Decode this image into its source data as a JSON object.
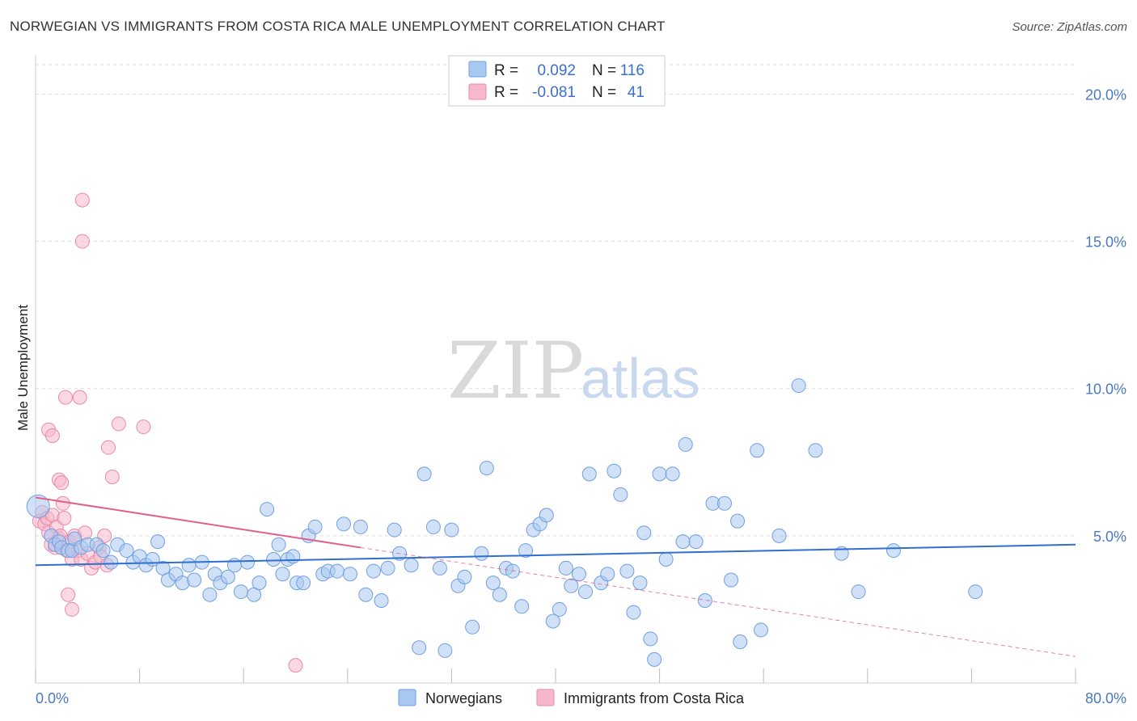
{
  "title": "NORWEGIAN VS IMMIGRANTS FROM COSTA RICA MALE UNEMPLOYMENT CORRELATION CHART",
  "source": "Source: ZipAtlas.com",
  "watermark": {
    "zip": "ZIP",
    "atlas": "atlas"
  },
  "colors": {
    "blue_fill": "#a9c8f0",
    "blue_stroke": "#6f9fe0",
    "blue_line": "#2f6fd0",
    "pink_fill": "#f7b8cb",
    "pink_stroke": "#e88aa8",
    "pink_line": "#e0608a",
    "grid": "#dddddd",
    "axis_text": "#4a78c2"
  },
  "legend": {
    "rows": [
      {
        "r_label": "R =",
        "r_value": "0.092",
        "n_label": "N =",
        "n_value": "116"
      },
      {
        "r_label": "R =",
        "r_value": "-0.081",
        "n_label": "N =",
        "n_value": "41"
      }
    ]
  },
  "chart_data": {
    "type": "scatter",
    "title": "NORWEGIAN VS IMMIGRANTS FROM COSTA RICA MALE UNEMPLOYMENT CORRELATION CHART",
    "xlabel": "",
    "ylabel": "Male Unemployment",
    "xlim": [
      0,
      80
    ],
    "ylim": [
      0,
      21
    ],
    "x_tick_labels": [
      "0.0%",
      "80.0%"
    ],
    "y_ticks": [
      5,
      10,
      15,
      20
    ],
    "y_tick_labels": [
      "5.0%",
      "10.0%",
      "15.0%",
      "20.0%"
    ],
    "grid": true,
    "legend_position": "top-center",
    "series": [
      {
        "name": "Norwegians",
        "color": "#a9c8f0",
        "trend": {
          "x": [
            0,
            80
          ],
          "y": [
            4.0,
            4.7
          ],
          "style": "solid"
        },
        "points": [
          [
            0.2,
            6.0
          ],
          [
            1.2,
            5.0
          ],
          [
            1.5,
            4.7
          ],
          [
            1.8,
            4.8
          ],
          [
            2.0,
            4.6
          ],
          [
            2.5,
            4.5
          ],
          [
            2.8,
            4.5
          ],
          [
            3.0,
            4.9
          ],
          [
            3.5,
            4.6
          ],
          [
            4.0,
            4.7
          ],
          [
            4.7,
            4.7
          ],
          [
            5.2,
            4.5
          ],
          [
            5.8,
            4.1
          ],
          [
            6.3,
            4.7
          ],
          [
            7.0,
            4.5
          ],
          [
            7.5,
            4.1
          ],
          [
            8.0,
            4.3
          ],
          [
            8.5,
            4.0
          ],
          [
            9.0,
            4.2
          ],
          [
            9.4,
            4.8
          ],
          [
            9.8,
            3.9
          ],
          [
            10.2,
            3.5
          ],
          [
            10.8,
            3.7
          ],
          [
            11.3,
            3.4
          ],
          [
            11.8,
            4.0
          ],
          [
            12.2,
            3.5
          ],
          [
            12.8,
            4.1
          ],
          [
            13.4,
            3.0
          ],
          [
            13.8,
            3.7
          ],
          [
            14.2,
            3.4
          ],
          [
            14.8,
            3.6
          ],
          [
            15.3,
            4.0
          ],
          [
            15.8,
            3.1
          ],
          [
            16.3,
            4.1
          ],
          [
            16.8,
            3.0
          ],
          [
            17.2,
            3.4
          ],
          [
            17.8,
            5.9
          ],
          [
            18.3,
            4.2
          ],
          [
            18.7,
            4.7
          ],
          [
            19.0,
            3.7
          ],
          [
            19.4,
            4.2
          ],
          [
            19.8,
            4.3
          ],
          [
            20.1,
            3.4
          ],
          [
            20.6,
            3.4
          ],
          [
            21.0,
            5.0
          ],
          [
            21.5,
            5.3
          ],
          [
            22.1,
            3.7
          ],
          [
            22.5,
            3.8
          ],
          [
            23.2,
            3.8
          ],
          [
            23.7,
            5.4
          ],
          [
            24.2,
            3.7
          ],
          [
            25.0,
            5.3
          ],
          [
            25.4,
            3.0
          ],
          [
            26.0,
            3.8
          ],
          [
            26.6,
            2.8
          ],
          [
            27.1,
            3.9
          ],
          [
            27.6,
            5.2
          ],
          [
            28.0,
            4.4
          ],
          [
            28.9,
            4.0
          ],
          [
            29.5,
            1.2
          ],
          [
            29.9,
            7.1
          ],
          [
            30.6,
            5.3
          ],
          [
            31.1,
            3.9
          ],
          [
            31.5,
            1.1
          ],
          [
            32.0,
            5.2
          ],
          [
            32.5,
            3.3
          ],
          [
            33.0,
            3.6
          ],
          [
            33.6,
            1.9
          ],
          [
            34.3,
            4.4
          ],
          [
            34.7,
            7.3
          ],
          [
            35.2,
            3.4
          ],
          [
            35.7,
            3.0
          ],
          [
            36.2,
            3.9
          ],
          [
            36.7,
            3.8
          ],
          [
            37.4,
            2.6
          ],
          [
            37.7,
            4.5
          ],
          [
            38.3,
            5.2
          ],
          [
            38.8,
            5.4
          ],
          [
            39.3,
            5.7
          ],
          [
            39.8,
            2.1
          ],
          [
            40.3,
            2.5
          ],
          [
            40.8,
            3.9
          ],
          [
            41.2,
            3.3
          ],
          [
            41.8,
            3.7
          ],
          [
            42.3,
            3.1
          ],
          [
            42.6,
            7.1
          ],
          [
            43.5,
            3.4
          ],
          [
            44.0,
            3.7
          ],
          [
            44.5,
            7.2
          ],
          [
            45.0,
            6.4
          ],
          [
            45.5,
            3.8
          ],
          [
            46.0,
            2.4
          ],
          [
            46.5,
            3.4
          ],
          [
            46.8,
            5.1
          ],
          [
            47.3,
            1.5
          ],
          [
            47.6,
            0.8
          ],
          [
            48.0,
            7.1
          ],
          [
            48.5,
            4.2
          ],
          [
            49.0,
            7.1
          ],
          [
            49.8,
            4.8
          ],
          [
            50.0,
            8.1
          ],
          [
            50.8,
            4.8
          ],
          [
            51.5,
            2.8
          ],
          [
            52.1,
            6.1
          ],
          [
            53.0,
            6.1
          ],
          [
            53.5,
            3.5
          ],
          [
            54.0,
            5.5
          ],
          [
            54.2,
            1.4
          ],
          [
            55.5,
            7.9
          ],
          [
            55.8,
            1.8
          ],
          [
            57.2,
            5.0
          ],
          [
            58.7,
            10.1
          ],
          [
            60.0,
            7.9
          ],
          [
            62.0,
            4.4
          ],
          [
            63.3,
            3.1
          ],
          [
            66.0,
            4.5
          ],
          [
            72.3,
            3.1
          ]
        ]
      },
      {
        "name": "Immigrants from Costa Rica",
        "color": "#f7b8cb",
        "trend": {
          "x": [
            0,
            25
          ],
          "y": [
            6.3,
            4.6
          ],
          "style": "solid",
          "extended": {
            "x": [
              25,
              80
            ],
            "y": [
              4.6,
              0.9
            ],
            "style": "dashed"
          }
        },
        "points": [
          [
            0.3,
            5.5
          ],
          [
            0.5,
            5.8
          ],
          [
            0.7,
            5.4
          ],
          [
            0.9,
            5.6
          ],
          [
            1.0,
            5.1
          ],
          [
            1.2,
            4.7
          ],
          [
            1.3,
            5.7
          ],
          [
            1.5,
            4.6
          ],
          [
            1.6,
            5.3
          ],
          [
            1.8,
            4.9
          ],
          [
            1.9,
            5.0
          ],
          [
            2.0,
            4.6
          ],
          [
            2.1,
            6.1
          ],
          [
            2.2,
            5.6
          ],
          [
            2.4,
            4.5
          ],
          [
            2.6,
            4.8
          ],
          [
            2.8,
            4.2
          ],
          [
            3.0,
            5.0
          ],
          [
            3.3,
            4.5
          ],
          [
            3.5,
            4.2
          ],
          [
            3.8,
            5.1
          ],
          [
            4.0,
            4.4
          ],
          [
            4.3,
            3.9
          ],
          [
            4.6,
            4.1
          ],
          [
            4.9,
            4.6
          ],
          [
            5.0,
            4.3
          ],
          [
            5.3,
            5.0
          ],
          [
            5.5,
            4.0
          ],
          [
            1.0,
            8.6
          ],
          [
            1.3,
            8.4
          ],
          [
            1.8,
            6.9
          ],
          [
            2.0,
            6.8
          ],
          [
            2.3,
            9.7
          ],
          [
            2.5,
            3.0
          ],
          [
            2.8,
            2.5
          ],
          [
            3.4,
            9.7
          ],
          [
            3.6,
            16.4
          ],
          [
            3.6,
            15.0
          ],
          [
            5.6,
            8.0
          ],
          [
            5.9,
            7.0
          ],
          [
            6.4,
            8.8
          ],
          [
            8.3,
            8.7
          ],
          [
            20.0,
            0.6
          ]
        ]
      }
    ]
  },
  "bottom_legend": [
    {
      "label": "Norwegians"
    },
    {
      "label": "Immigrants from Costa Rica"
    }
  ]
}
